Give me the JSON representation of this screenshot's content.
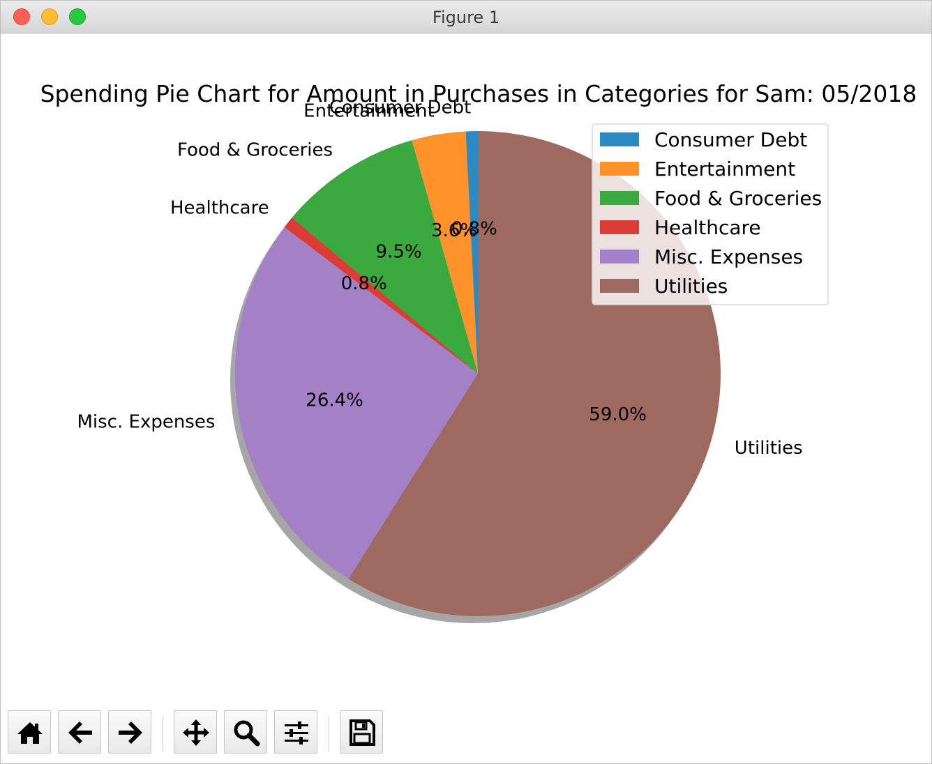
{
  "window": {
    "title": "Figure 1"
  },
  "chart_data": {
    "type": "pie",
    "title": "Spending Pie Chart for Amount in Purchases in Categories for Sam: 05/2018",
    "categories": [
      "Consumer Debt",
      "Entertainment",
      "Food & Groceries",
      "Healthcare",
      "Misc. Expenses",
      "Utilities"
    ],
    "values": [
      0.8,
      3.6,
      9.5,
      0.8,
      26.4,
      59.0
    ],
    "value_labels": [
      "0.8%",
      "3.6%",
      "9.5%",
      "0.8%",
      "26.4%",
      "59.0%"
    ],
    "colors": [
      "#2c8ac3",
      "#ff922b",
      "#3aa93e",
      "#dd3c36",
      "#a480c6",
      "#9e6a60"
    ],
    "start_angle_deg": 90,
    "direction": "counterclockwise",
    "shadow": true,
    "legend": {
      "placement": "upper-right",
      "entries": [
        "Consumer Debt",
        "Entertainment",
        "Food & Groceries",
        "Healthcare",
        "Misc. Expenses",
        "Utilities"
      ]
    }
  },
  "toolbar": {
    "buttons": [
      {
        "name": "home-button",
        "icon": "home-icon"
      },
      {
        "name": "back-button",
        "icon": "arrow-left-icon"
      },
      {
        "name": "forward-button",
        "icon": "arrow-right-icon"
      },
      {
        "name": "pan-button",
        "icon": "move-icon"
      },
      {
        "name": "zoom-button",
        "icon": "magnifier-icon"
      },
      {
        "name": "configure-subplots-button",
        "icon": "sliders-icon"
      },
      {
        "name": "save-button",
        "icon": "floppy-disk-icon"
      }
    ]
  }
}
